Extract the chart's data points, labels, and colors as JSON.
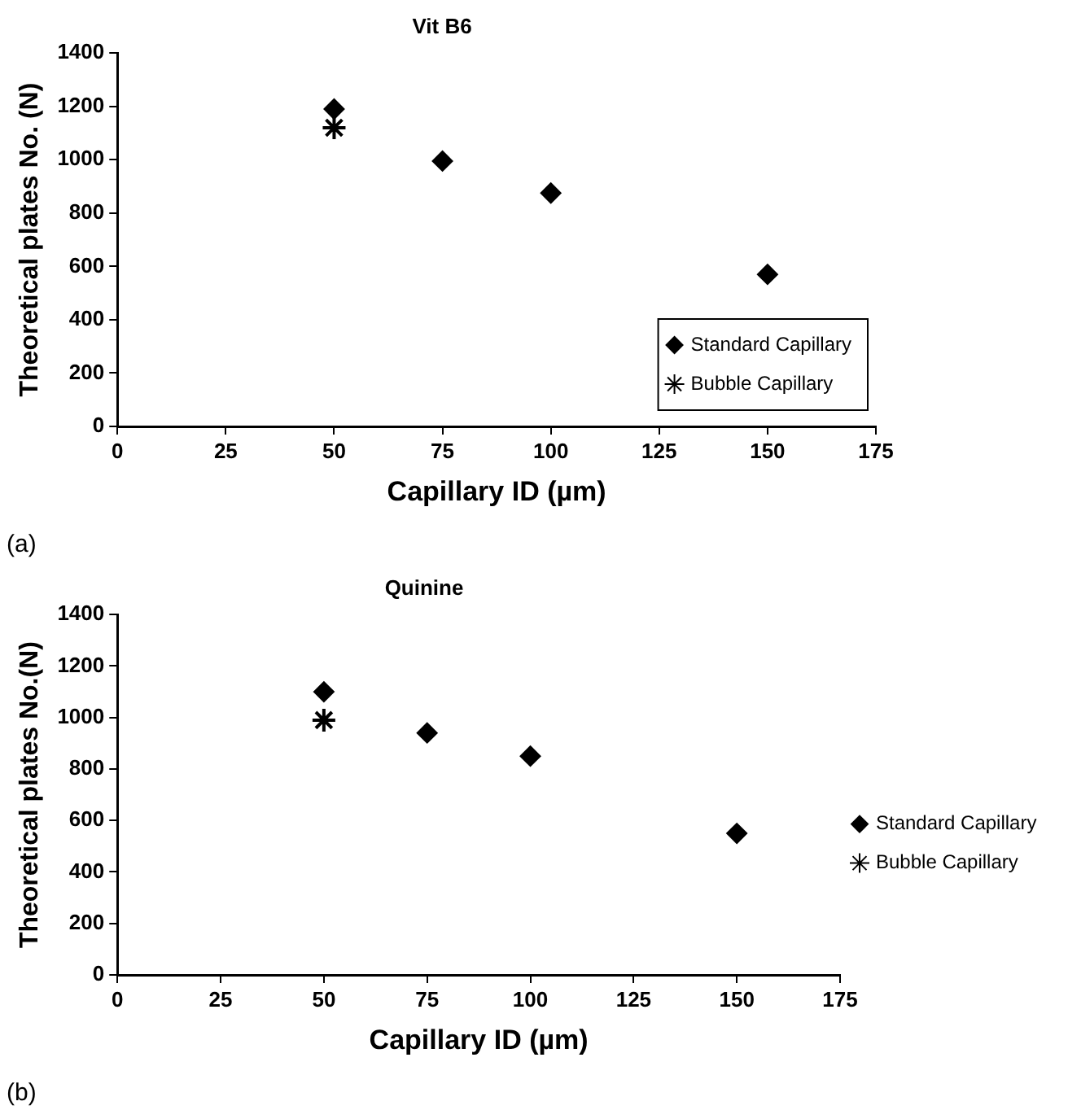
{
  "chart_data": [
    {
      "type": "scatter",
      "title": "Vit B6",
      "xlabel": "Capillary ID (µm)",
      "ylabel": "Theoretical plates No. (N)",
      "xlim": [
        0,
        175
      ],
      "xticks": [
        0,
        25,
        50,
        75,
        100,
        125,
        150,
        175
      ],
      "ylim": [
        0,
        1400
      ],
      "yticks": [
        0,
        200,
        400,
        600,
        800,
        1000,
        1200,
        1400
      ],
      "grid": false,
      "legend": "bottom right",
      "annotations": [
        "(a)"
      ],
      "series": [
        {
          "name": "Standard Capillary",
          "color": "#000000",
          "marker": "diamond",
          "x": [
            50,
            75,
            100,
            150
          ],
          "values": [
            1190,
            995,
            875,
            570
          ]
        },
        {
          "name": "Bubble Capillary",
          "color": "#000000",
          "marker": "cross",
          "x": [
            50
          ],
          "values": [
            1120
          ]
        }
      ]
    },
    {
      "type": "scatter",
      "title": "Quinine",
      "xlabel": "Capillary ID (µm)",
      "ylabel": "Theoretical plates No.(N)",
      "xlim": [
        0,
        175
      ],
      "xticks": [
        0,
        25,
        50,
        75,
        100,
        125,
        150,
        175
      ],
      "ylim": [
        0,
        1400
      ],
      "yticks": [
        0,
        200,
        400,
        600,
        800,
        1000,
        1200,
        1400
      ],
      "grid": false,
      "legend": "right",
      "annotations": [
        "(b)"
      ],
      "series": [
        {
          "name": "Standard Capillary",
          "color": "#000000",
          "marker": "diamond",
          "x": [
            50,
            75,
            100,
            150
          ],
          "values": [
            1100,
            940,
            850,
            550
          ]
        },
        {
          "name": "Bubble Capillary",
          "color": "#000000",
          "marker": "cross",
          "x": [
            50
          ],
          "values": [
            990
          ]
        }
      ]
    }
  ]
}
